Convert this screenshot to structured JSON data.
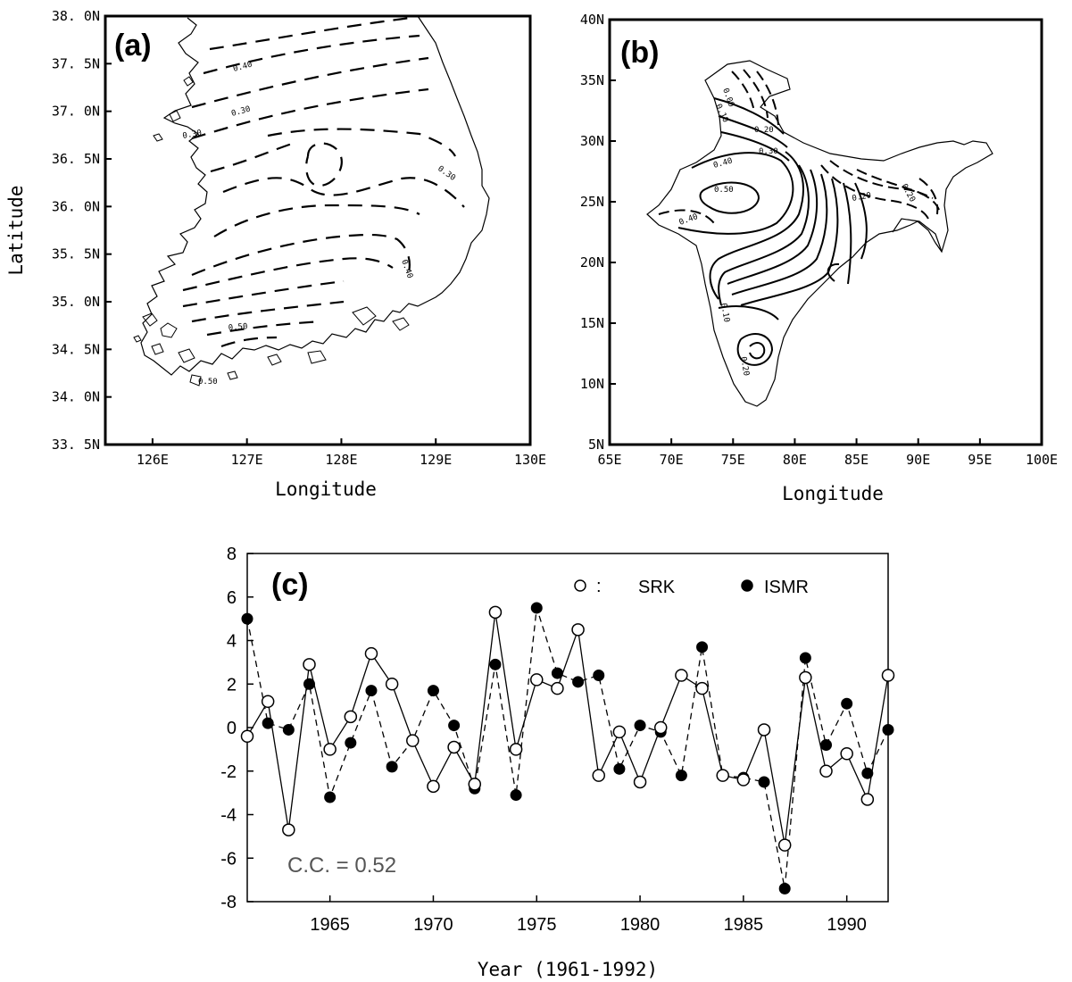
{
  "panels": {
    "a": {
      "label": "(a)",
      "xlabel": "Longitude",
      "ylabel": "Latitude",
      "x_ticks": [
        "126E",
        "127E",
        "128E",
        "129E",
        "130E"
      ],
      "x_tick_values": [
        126,
        127,
        128,
        129,
        130
      ],
      "y_ticks": [
        "38. 0N",
        "37. 5N",
        "37. 0N",
        "36. 5N",
        "36. 0N",
        "35. 5N",
        "35. 0N",
        "34. 5N",
        "34. 0N",
        "33. 5N"
      ],
      "y_tick_values": [
        38.0,
        37.5,
        37.0,
        36.5,
        36.0,
        35.5,
        35.0,
        34.5,
        34.0,
        33.5
      ],
      "xlim": [
        125.5,
        130
      ],
      "ylim": [
        33.5,
        38.0
      ],
      "contour_labels": [
        "0.40",
        "0.30",
        "0.30",
        "0.30",
        "0.40",
        "0.50",
        "0.50"
      ]
    },
    "b": {
      "label": "(b)",
      "xlabel": "Longitude",
      "x_ticks": [
        "65E",
        "70E",
        "75E",
        "80E",
        "85E",
        "90E",
        "95E",
        "100E"
      ],
      "x_tick_values": [
        65,
        70,
        75,
        80,
        85,
        90,
        95,
        100
      ],
      "y_ticks": [
        "40N",
        "35N",
        "30N",
        "25N",
        "20N",
        "15N",
        "10N",
        "5N"
      ],
      "y_tick_values": [
        40,
        35,
        30,
        25,
        20,
        15,
        10,
        5
      ],
      "xlim": [
        65,
        100
      ],
      "ylim": [
        5,
        40
      ],
      "contour_labels": [
        "0.00",
        "0.10",
        "0.20",
        "0.30",
        "0.40",
        "0.50",
        "0.40",
        "0.10",
        "0.20",
        "0.20",
        "0.20"
      ]
    }
  },
  "chart_data": {
    "type": "line",
    "label": "(c)",
    "xlabel": "Year  (1961-1992)",
    "ylabel": "",
    "x_ticks": [
      1965,
      1970,
      1975,
      1980,
      1985,
      1990
    ],
    "y_ticks": [
      8,
      6,
      4,
      2,
      0,
      -2,
      -4,
      -6,
      -8
    ],
    "xlim": [
      1961,
      1992
    ],
    "ylim": [
      -8,
      8
    ],
    "annotation": "C.C.  =  0.52",
    "legend_separator": ":",
    "legend_placement": "top-right",
    "x": [
      1961,
      1962,
      1963,
      1964,
      1965,
      1966,
      1967,
      1968,
      1969,
      1970,
      1971,
      1972,
      1973,
      1974,
      1975,
      1976,
      1977,
      1978,
      1979,
      1980,
      1981,
      1982,
      1983,
      1984,
      1985,
      1986,
      1987,
      1988,
      1989,
      1990,
      1991,
      1992
    ],
    "series": [
      {
        "name": "SRK",
        "marker": "open-circle",
        "line": "solid",
        "values": [
          -0.4,
          1.2,
          -4.7,
          2.9,
          -1.0,
          0.5,
          3.4,
          2.0,
          -0.6,
          -2.7,
          -0.9,
          -2.6,
          5.3,
          -1.0,
          2.2,
          1.8,
          4.5,
          -2.2,
          -0.2,
          -2.5,
          0.0,
          2.4,
          1.8,
          -2.2,
          -2.4,
          -0.1,
          -5.4,
          2.3,
          -2.0,
          -1.2,
          -3.3,
          2.4
        ]
      },
      {
        "name": "ISMR",
        "marker": "filled-circle",
        "line": "dashed",
        "values": [
          5.0,
          0.2,
          -0.1,
          2.0,
          -3.2,
          -0.7,
          1.7,
          -1.8,
          -0.6,
          1.7,
          0.1,
          -2.8,
          2.9,
          -3.1,
          5.5,
          2.5,
          2.1,
          2.4,
          -1.9,
          0.1,
          -0.2,
          -2.2,
          3.7,
          -2.2,
          -2.3,
          -2.5,
          -7.4,
          3.2,
          -0.8,
          1.1,
          -2.1,
          -0.1
        ]
      }
    ]
  }
}
